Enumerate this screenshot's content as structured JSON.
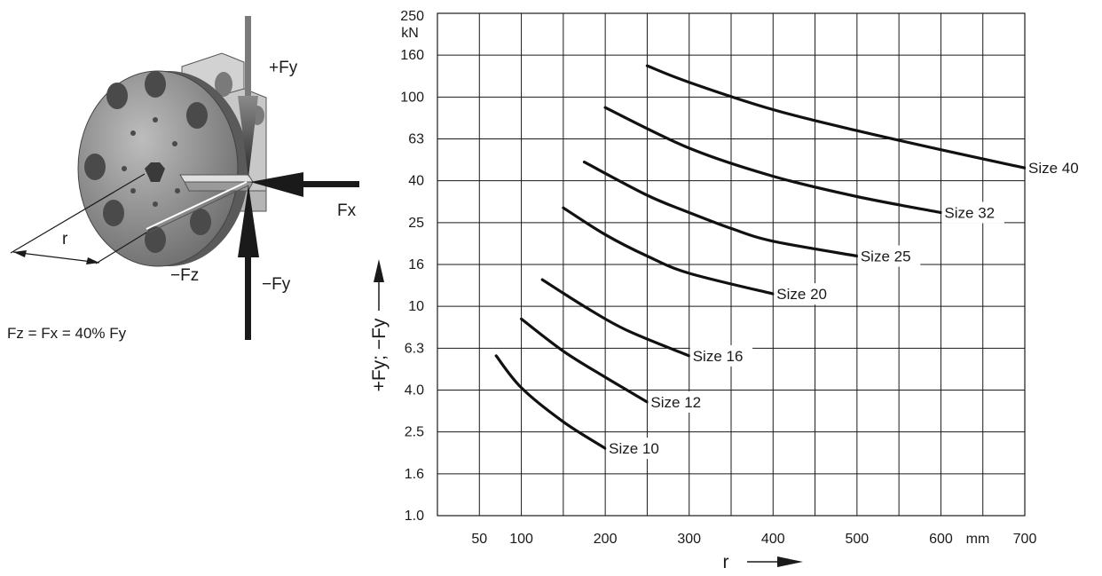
{
  "illustration": {
    "labels": {
      "plus_fy": "+Fy",
      "fx": "Fx",
      "minus_fz": "−Fz",
      "minus_fy": "−Fy",
      "r": "r"
    },
    "equation": "Fz = Fx = 40% Fy"
  },
  "chart_data": {
    "type": "line",
    "x_ticks": [
      "50",
      "100",
      "200",
      "300",
      "400",
      "500",
      "600",
      "700"
    ],
    "x_unit_label": "mm",
    "xlabel": "r",
    "y_ticks": [
      "1.0",
      "1.6",
      "2.5",
      "4.0",
      "6.3",
      "10",
      "16",
      "25",
      "40",
      "63",
      "100",
      "160",
      "250"
    ],
    "y_unit_label": "kN",
    "ylabel": "+Fy; −Fy",
    "ylim": [
      1.0,
      250
    ],
    "xlim": [
      0,
      700
    ],
    "y_scale": "log",
    "grid": true,
    "series": [
      {
        "name": "Size 10",
        "x": [
          70,
          100,
          150,
          200
        ],
        "y": [
          5.8,
          4.1,
          2.8,
          2.1
        ]
      },
      {
        "name": "Size 12",
        "x": [
          100,
          150,
          200,
          250
        ],
        "y": [
          8.7,
          6.1,
          4.6,
          3.5
        ]
      },
      {
        "name": "Size 16",
        "x": [
          125,
          175,
          225,
          300
        ],
        "y": [
          13.5,
          10,
          7.7,
          5.8
        ]
      },
      {
        "name": "Size 20",
        "x": [
          150,
          200,
          250,
          300,
          400
        ],
        "y": [
          29.5,
          22,
          17.5,
          14.5,
          11.5
        ]
      },
      {
        "name": "Size 25",
        "x": [
          175,
          250,
          300,
          350,
          400,
          500
        ],
        "y": [
          49,
          34,
          28,
          23.5,
          20.5,
          17.5
        ]
      },
      {
        "name": "Size 32",
        "x": [
          200,
          300,
          400,
          500,
          600
        ],
        "y": [
          89,
          57,
          42,
          33.5,
          28
        ]
      },
      {
        "name": "Size 40",
        "x": [
          250,
          300,
          400,
          500,
          600,
          700
        ],
        "y": [
          142,
          118,
          87,
          69,
          56,
          46
        ]
      }
    ]
  }
}
